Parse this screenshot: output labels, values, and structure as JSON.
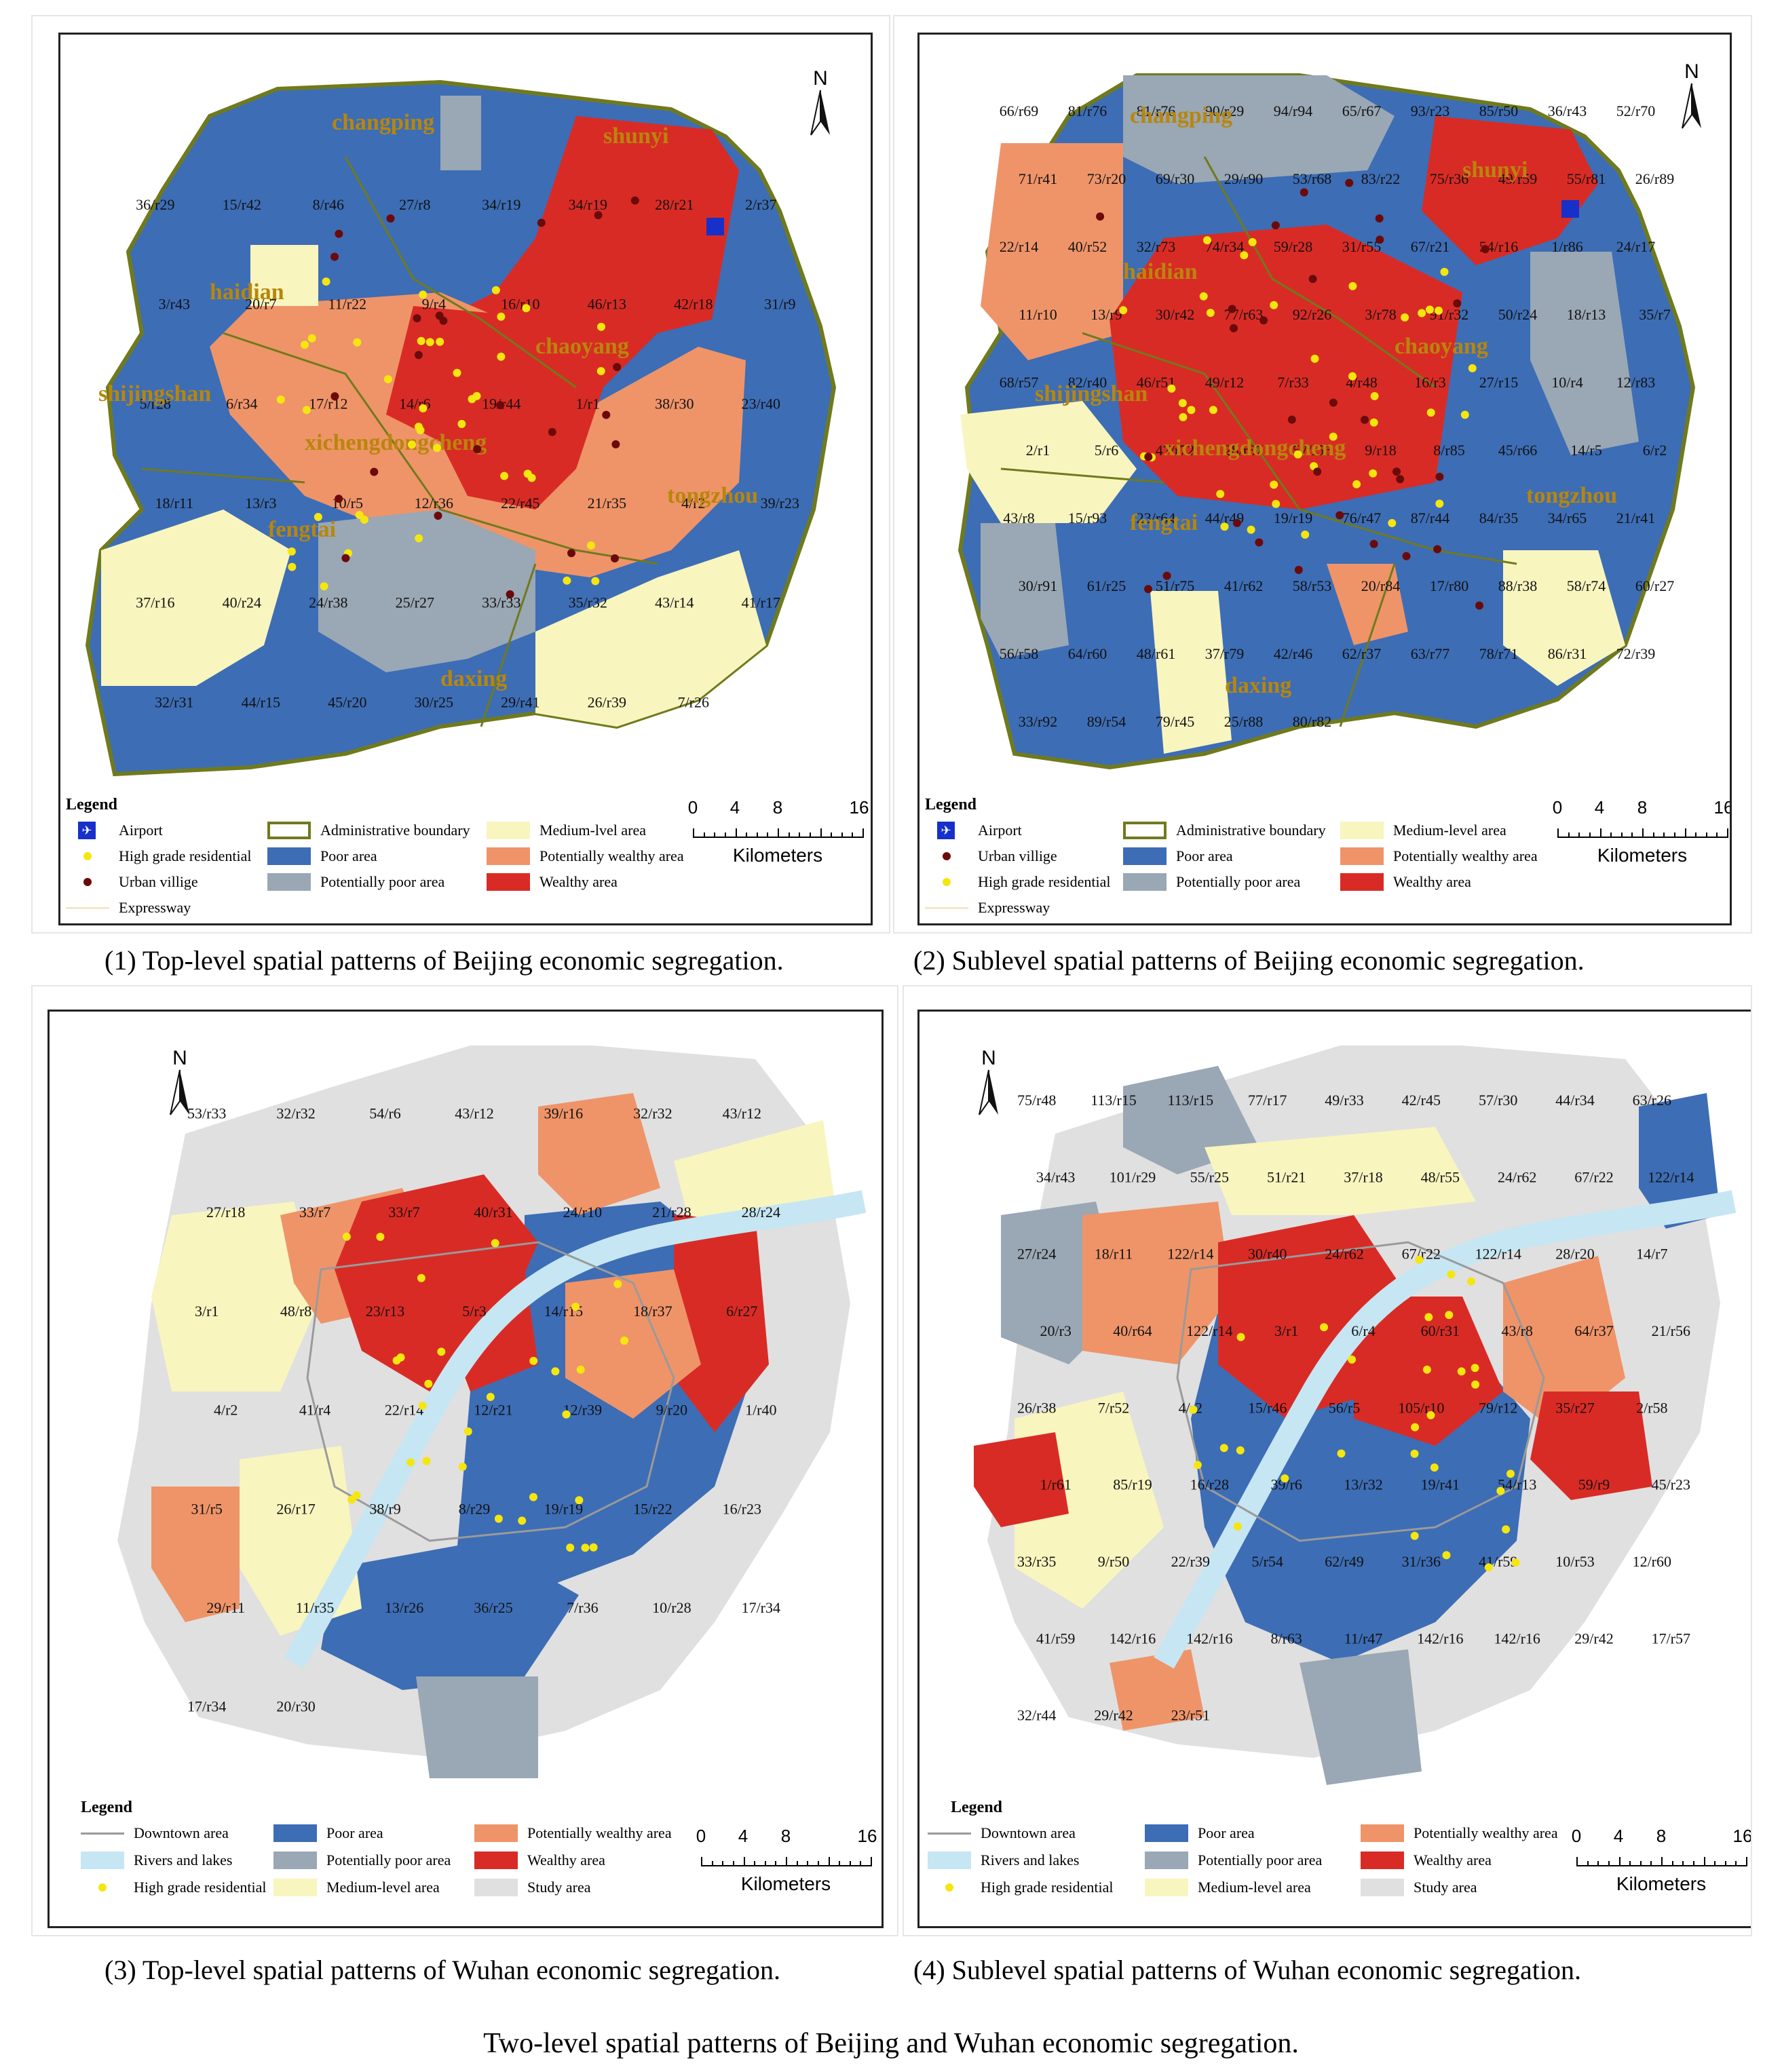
{
  "colors": {
    "poor": "#3d6db5",
    "potentially_poor": "#9aa7b4",
    "medium": "#f8f5bf",
    "potentially_wealthy": "#ef9469",
    "wealthy": "#d92b25",
    "study": "#e0e0e0",
    "water": "#c6e6f3",
    "boundary": "#707a1c",
    "high_grade": "#f5e60f",
    "village": "#6b0a0a",
    "downtown": "#9a9a9a"
  },
  "north_label": "N",
  "scale": {
    "ticks": [
      "0",
      "4",
      "8",
      "16"
    ],
    "ticks_cut": [
      "0",
      "4",
      "8",
      "16"
    ],
    "unit": "Kilometers"
  },
  "panel1": {
    "caption": "(1) Top-level spatial patterns of Beijing economic segregation.",
    "districts": [
      "changping",
      "shunyi",
      "haidian",
      "chaoyang",
      "shijingshan",
      "xichengdongcheng",
      "fengtai",
      "tongzhou",
      "daxing"
    ],
    "labels": [
      "36/r29",
      "15/r42",
      "8/r46",
      "27/r8",
      "34/r19",
      "34/r19",
      "28/r21",
      "2/r37",
      "3/r43",
      "20/r7",
      "11/r22",
      "9/r4",
      "16/r10",
      "46/r13",
      "42/r18",
      "31/r9",
      "5/r28",
      "6/r34",
      "17/r12",
      "14/r6",
      "19/r44",
      "1/r1",
      "38/r30",
      "23/r40",
      "18/r11",
      "13/r3",
      "10/r5",
      "12/r36",
      "22/r45",
      "21/r35",
      "4/r2",
      "39/r23",
      "37/r16",
      "40/r24",
      "24/r38",
      "25/r27",
      "33/r33",
      "35/r32",
      "43/r14",
      "41/r17",
      "32/r31",
      "44/r15",
      "45/r20",
      "30/r25",
      "29/r41",
      "26/r39",
      "7/r26"
    ],
    "legend": {
      "title": "Legend",
      "airport": "Airport",
      "high_grade": "High grade residential",
      "village": "Urban villige",
      "expressway": "Expressway",
      "boundary": "Administrative boundary",
      "poor": "Poor area",
      "potentially_poor": "Potentially poor area",
      "medium": "Medium-lvel area",
      "potentially_wealthy": "Potentially wealthy area",
      "wealthy": "Wealthy area"
    }
  },
  "panel2": {
    "caption": "(2) Sublevel spatial patterns of Beijing economic segregation.",
    "districts": [
      "changping",
      "shunyi",
      "haidian",
      "chaoyang",
      "shijingshan",
      "xichengdongcheng",
      "fengtai",
      "tongzhou",
      "daxing"
    ],
    "labels": [
      "66/r69",
      "81/r76",
      "81/r76",
      "90/r29",
      "94/r94",
      "65/r67",
      "93/r23",
      "85/r50",
      "36/r43",
      "52/r70",
      "71/r41",
      "73/r20",
      "69/r30",
      "29/r90",
      "53/r68",
      "83/r22",
      "75/r36",
      "49/r59",
      "55/r81",
      "26/r89",
      "22/r14",
      "40/r52",
      "32/r73",
      "74/r34",
      "59/r28",
      "31/r55",
      "67/r21",
      "54/r16",
      "1/r86",
      "24/r17",
      "11/r10",
      "13/r9",
      "30/r42",
      "77/r63",
      "92/r26",
      "3/r78",
      "91/r32",
      "50/r24",
      "18/r13",
      "35/r7",
      "68/r57",
      "82/r40",
      "46/r51",
      "49/r12",
      "7/r33",
      "4/r48",
      "16/r3",
      "27/r15",
      "10/r4",
      "12/r83",
      "2/r1",
      "5/r6",
      "47/r72",
      "28/r87",
      "57/r56",
      "9/r18",
      "8/r85",
      "45/r66",
      "14/r5",
      "6/r2",
      "43/r8",
      "15/r93",
      "23/r64",
      "44/r49",
      "19/r19",
      "76/r47",
      "87/r44",
      "84/r35",
      "34/r65",
      "21/r41",
      "30/r91",
      "61/r25",
      "51/r75",
      "41/r62",
      "58/r53",
      "20/r84",
      "17/r80",
      "88/r38",
      "58/r74",
      "60/r27",
      "56/r58",
      "64/r60",
      "48/r61",
      "37/r79",
      "42/r46",
      "62/r37",
      "63/r77",
      "78/r71",
      "86/r31",
      "72/r39",
      "33/r92",
      "89/r54",
      "79/r45",
      "25/r88",
      "80/r82"
    ],
    "legend": {
      "title": "Legend",
      "airport": "Airport",
      "village": "Urban villige",
      "high_grade": "High grade residential",
      "expressway": "Expressway",
      "boundary": "Administrative boundary",
      "poor": "Poor area",
      "potentially_poor": "Potentially poor area",
      "medium": "Medium-level area",
      "potentially_wealthy": "Potentially wealthy area",
      "wealthy": "Wealthy area"
    }
  },
  "panel3": {
    "caption": "(3) Top-level spatial patterns of Wuhan economic segregation.",
    "labels": [
      "53/r33",
      "32/r32",
      "54/r6",
      "43/r12",
      "39/r16",
      "32/r32",
      "43/r12",
      "27/r18",
      "33/r7",
      "33/r7",
      "40/r31",
      "24/r10",
      "21/r28",
      "28/r24",
      "3/r1",
      "48/r8",
      "23/r13",
      "5/r3",
      "14/r15",
      "18/r37",
      "6/r27",
      "4/r2",
      "41/r4",
      "22/r14",
      "12/r21",
      "12/r39",
      "9/r20",
      "1/r40",
      "31/r5",
      "26/r17",
      "38/r9",
      "8/r29",
      "19/r19",
      "15/r22",
      "16/r23",
      "29/r11",
      "11/r35",
      "13/r26",
      "36/r25",
      "7/r36",
      "10/r28",
      "17/r34",
      "17/r34",
      "20/r30"
    ],
    "legend": {
      "title": "Legend",
      "downtown": "Downtown area",
      "rivers": "Rivers and lakes",
      "high_grade": "High grade residential",
      "poor": "Poor area",
      "potentially_poor": "Potentially poor area",
      "medium": "Medium-level area",
      "potentially_wealthy": "Potentially wealthy area",
      "wealthy": "Wealthy area",
      "study": "Study area"
    }
  },
  "panel4": {
    "caption": "(4) Sublevel spatial patterns of Wuhan economic segregation.",
    "labels": [
      "75/r48",
      "113/r15",
      "113/r15",
      "77/r17",
      "49/r33",
      "42/r45",
      "57/r30",
      "44/r34",
      "63/r26",
      "34/r43",
      "101/r29",
      "55/r25",
      "51/r21",
      "37/r18",
      "48/r55",
      "24/r62",
      "67/r22",
      "122/r14",
      "27/r24",
      "18/r11",
      "122/r14",
      "30/r40",
      "24/r62",
      "67/r22",
      "122/r14",
      "28/r20",
      "14/r7",
      "20/r3",
      "40/r64",
      "122/r14",
      "3/r1",
      "6/r4",
      "60/r31",
      "43/r8",
      "64/r37",
      "21/r56",
      "26/r38",
      "7/r52",
      "4/r2",
      "15/r46",
      "56/r5",
      "105/r10",
      "79/r12",
      "35/r27",
      "2/r58",
      "1/r61",
      "85/r19",
      "16/r28",
      "39/r6",
      "13/r32",
      "19/r41",
      "54/r13",
      "59/r9",
      "45/r23",
      "33/r35",
      "9/r50",
      "22/r39",
      "5/r54",
      "62/r49",
      "31/r36",
      "41/r59",
      "10/r53",
      "12/r60",
      "41/r59",
      "142/r16",
      "142/r16",
      "8/r63",
      "11/r47",
      "142/r16",
      "142/r16",
      "29/r42",
      "17/r57",
      "32/r44",
      "29/r42",
      "23/r51"
    ],
    "legend": {
      "title": "Legend",
      "downtown": "Downtown area",
      "rivers": "Rivers and lakes",
      "high_grade": "High grade residential",
      "poor": "Poor area",
      "potentially_poor": "Potentially poor area",
      "medium": "Medium-level area",
      "potentially_wealthy": "Potentially wealthy area",
      "wealthy": "Wealthy area",
      "study": "Study area"
    }
  },
  "figure_title": "Two-level spatial patterns of Beijing and Wuhan economic segregation."
}
